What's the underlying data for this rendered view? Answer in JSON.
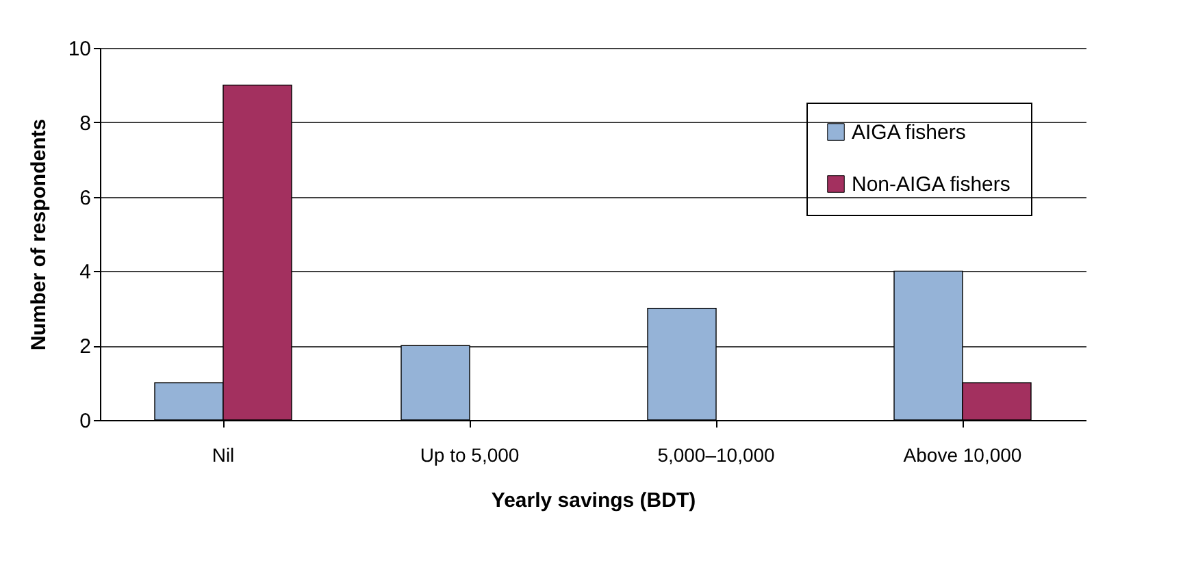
{
  "chart_data": {
    "type": "bar",
    "xlabel": "Yearly savings (BDT)",
    "ylabel": "Number of respondents",
    "categories": [
      "Nil",
      "Up to 5,000",
      "5,000–10,000",
      "Above 10,000"
    ],
    "series": [
      {
        "name": "AIGA fishers",
        "color": "#95b3d7",
        "values": [
          1,
          2,
          3,
          4
        ]
      },
      {
        "name": "Non-AIGA fishers",
        "color": "#a3305f",
        "values": [
          9,
          0,
          0,
          1
        ]
      }
    ],
    "ylim": [
      0,
      10
    ],
    "yticks": [
      0,
      2,
      4,
      6,
      8,
      10
    ],
    "grid": "y",
    "legend": "top right"
  }
}
